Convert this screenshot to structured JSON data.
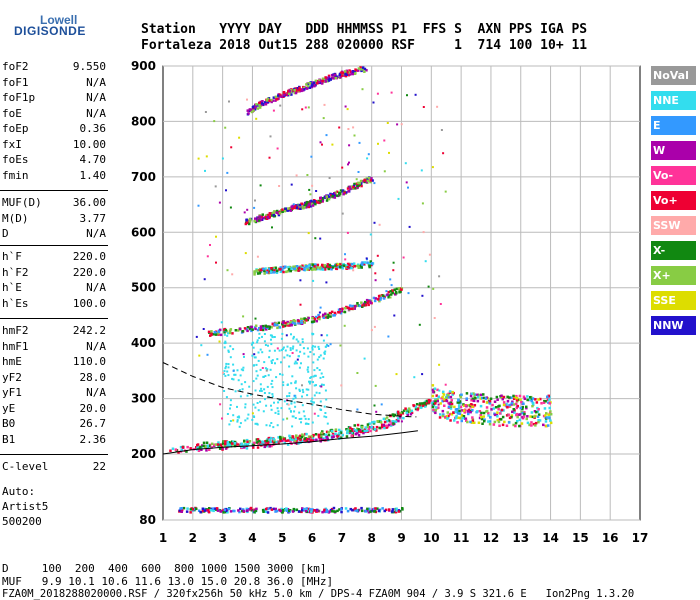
{
  "logo": {
    "line1": "Lowell",
    "line2": "DIGISONDE"
  },
  "header": {
    "line1": "Station   YYYY DAY   DDD HHMMSS P1  FFS S  AXN PPS IGA PS",
    "line2": "Fortaleza 2018 Out15 288 020000 RSF     1  714 100 10+ 11"
  },
  "params": {
    "g1": [
      {
        "k": "foF2",
        "v": "9.550"
      },
      {
        "k": "foF1",
        "v": "N/A"
      },
      {
        "k": "foF1p",
        "v": "N/A"
      },
      {
        "k": "foE",
        "v": "N/A"
      },
      {
        "k": "foEp",
        "v": "0.36"
      },
      {
        "k": "fxI",
        "v": "10.00"
      },
      {
        "k": "foEs",
        "v": "4.70"
      },
      {
        "k": "fmin",
        "v": "1.40"
      }
    ],
    "g2": [
      {
        "k": "MUF(D)",
        "v": "36.00"
      },
      {
        "k": "M(D)",
        "v": "3.77"
      },
      {
        "k": "D",
        "v": "N/A"
      }
    ],
    "g3": [
      {
        "k": "h`F",
        "v": "220.0"
      },
      {
        "k": "h`F2",
        "v": "220.0"
      },
      {
        "k": "h`E",
        "v": "N/A"
      },
      {
        "k": "h`Es",
        "v": "100.0"
      }
    ],
    "g4": [
      {
        "k": "hmF2",
        "v": "242.2"
      },
      {
        "k": "hmF1",
        "v": "N/A"
      },
      {
        "k": "hmE",
        "v": "110.0"
      },
      {
        "k": "yF2",
        "v": "28.0"
      },
      {
        "k": "yF1",
        "v": "N/A"
      },
      {
        "k": "yE",
        "v": "20.0"
      },
      {
        "k": "B0",
        "v": "26.7"
      },
      {
        "k": "B1",
        "v": "2.36"
      }
    ],
    "clevel": {
      "k": "C-level",
      "v": "22"
    },
    "auto": [
      "Auto:",
      "Artist5",
      "500200"
    ]
  },
  "legend": [
    {
      "label": "NoVal",
      "bg": "#999999",
      "fg": "#ffffff"
    },
    {
      "label": "NNE",
      "bg": "#33ddee",
      "fg": "#ffffff"
    },
    {
      "label": "E",
      "bg": "#3399ff",
      "fg": "#ffffff"
    },
    {
      "label": "W",
      "bg": "#aa00aa",
      "fg": "#ffffff"
    },
    {
      "label": "Vo-",
      "bg": "#ff3399",
      "fg": "#ffffff"
    },
    {
      "label": "Vo+",
      "bg": "#ee0033",
      "fg": "#ffffff"
    },
    {
      "label": "SSW",
      "bg": "#ffaaaa",
      "fg": "#ffffff"
    },
    {
      "label": "X-",
      "bg": "#118811",
      "fg": "#ffffff"
    },
    {
      "label": "X+",
      "bg": "#88cc44",
      "fg": "#ffffff"
    },
    {
      "label": "SSE",
      "bg": "#dddd00",
      "fg": "#ffffff"
    },
    {
      "label": "NNW",
      "bg": "#2211cc",
      "fg": "#ffffff"
    }
  ],
  "footer": {
    "d_line": "D     100  200  400  600  800 1000 1500 3000 [km]",
    "muf_line": "MUF   9.9 10.1 10.6 11.6 13.0 15.0 20.8 36.0 [MHz]",
    "file_line": "FZA0M_2018288020000.RSF / 320fx256h 50 kHz 5.0 km / DPS-4 FZA0M 904 / 3.9 S 321.6 E   Ion2Png 1.3.20"
  },
  "chart_data": {
    "type": "scatter",
    "x_ticks": [
      "1",
      "2",
      "3",
      "4",
      "5",
      "6",
      "7",
      "8",
      "9",
      "10",
      "11",
      "12",
      "13",
      "14",
      "15",
      "16",
      "17"
    ],
    "y_ticks": [
      "80",
      "200",
      "300",
      "400",
      "500",
      "600",
      "700",
      "800",
      "900"
    ],
    "xlim": [
      1,
      17
    ],
    "y_scale": "piecewise: 80-200 compressed, 200-900 linear",
    "ylim": [
      80,
      900
    ],
    "grid": true,
    "legend_position": "right",
    "series": [
      {
        "name": "Es echoes",
        "points": [
          [
            1.5,
            100
          ],
          [
            3,
            100
          ],
          [
            5,
            100
          ],
          [
            7,
            100
          ],
          [
            8.5,
            100
          ],
          [
            9,
            100
          ]
        ]
      },
      {
        "name": "F trace (O)",
        "points": [
          [
            1.2,
            208
          ],
          [
            2,
            212
          ],
          [
            4,
            218
          ],
          [
            6,
            228
          ],
          [
            7.5,
            240
          ],
          [
            8.5,
            255
          ],
          [
            9.2,
            275
          ],
          [
            9.5,
            285
          ]
        ]
      },
      {
        "name": "F trace (X)",
        "points": [
          [
            2,
            217
          ],
          [
            4,
            223
          ],
          [
            6,
            235
          ],
          [
            8,
            255
          ],
          [
            9.3,
            285
          ],
          [
            10.2,
            300
          ]
        ]
      },
      {
        "name": "2nd hop",
        "points": [
          [
            2.5,
            420
          ],
          [
            4,
            428
          ],
          [
            6,
            445
          ],
          [
            8,
            478
          ],
          [
            9,
            500
          ]
        ]
      },
      {
        "name": "3rd hop",
        "points": [
          [
            3.7,
            620
          ],
          [
            5,
            640
          ],
          [
            6,
            655
          ],
          [
            7,
            675
          ],
          [
            8,
            700
          ]
        ]
      },
      {
        "name": "4th hop",
        "points": [
          [
            3.8,
            820
          ],
          [
            4.5,
            840
          ],
          [
            5.5,
            860
          ],
          [
            6.8,
            885
          ],
          [
            7.8,
            898
          ]
        ]
      },
      {
        "name": "Es 2nd hop",
        "points": [
          [
            4,
            530
          ],
          [
            5,
            535
          ],
          [
            6,
            540
          ],
          [
            7,
            540
          ],
          [
            8,
            545
          ]
        ]
      },
      {
        "name": "Spread F",
        "points": [
          [
            10,
            300
          ],
          [
            10.5,
            290
          ],
          [
            11,
            285
          ],
          [
            11.5,
            285
          ],
          [
            12,
            280
          ],
          [
            13,
            280
          ],
          [
            14,
            280
          ]
        ]
      }
    ],
    "fitted_curves": [
      {
        "name": "MUF(D) profile",
        "style": "dashed",
        "points": [
          [
            1,
            365
          ],
          [
            2,
            340
          ],
          [
            3,
            320
          ],
          [
            4,
            308
          ],
          [
            5,
            298
          ],
          [
            6,
            290
          ],
          [
            7,
            280
          ],
          [
            8,
            272
          ],
          [
            9,
            268
          ],
          [
            9.5,
            267
          ]
        ]
      },
      {
        "name": "Model profile",
        "style": "solid",
        "points": [
          [
            1,
            200
          ],
          [
            2,
            208
          ],
          [
            3,
            212
          ],
          [
            4,
            215
          ],
          [
            5,
            218
          ],
          [
            6,
            222
          ],
          [
            7,
            228
          ],
          [
            8,
            232
          ],
          [
            9,
            238
          ],
          [
            9.55,
            242
          ]
        ]
      }
    ]
  }
}
